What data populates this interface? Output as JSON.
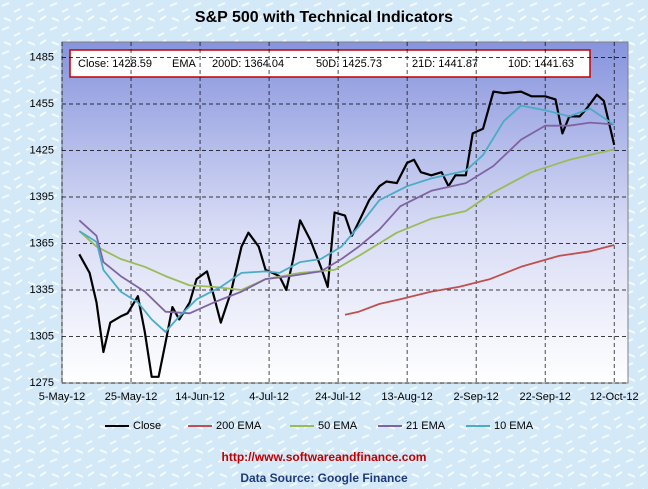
{
  "chart_data": {
    "type": "line",
    "title": "S&P 500 with Technical Indicators",
    "info_box": [
      "Close: 1428.59",
      "EMA",
      "200D: 1364.04",
      "50D: 1425.73",
      "21D: 1441.87",
      "10D: 1441.63"
    ],
    "footer_url": "http://www.softwareandfinance.com",
    "footer_source": "Data Source: Google Finance",
    "xlim": [
      "2012-05-05",
      "2012-10-16"
    ],
    "xticks": [
      {
        "value": "2012-05-05",
        "label": "5-May-12"
      },
      {
        "value": "2012-05-25",
        "label": "25-May-12"
      },
      {
        "value": "2012-06-14",
        "label": "14-Jun-12"
      },
      {
        "value": "2012-07-04",
        "label": "4-Jul-12"
      },
      {
        "value": "2012-07-24",
        "label": "24-Jul-12"
      },
      {
        "value": "2012-08-13",
        "label": "13-Aug-12"
      },
      {
        "value": "2012-09-02",
        "label": "2-Sep-12"
      },
      {
        "value": "2012-09-22",
        "label": "22-Sep-12"
      },
      {
        "value": "2012-10-12",
        "label": "12-Oct-12"
      }
    ],
    "ylim": [
      1275,
      1495
    ],
    "yticks": [
      1275,
      1305,
      1335,
      1365,
      1395,
      1425,
      1455,
      1485
    ],
    "grid": true,
    "legend": "bottom",
    "series": [
      {
        "name": "Close",
        "color": "#000000",
        "x": [
          "2012-05-10",
          "2012-05-13",
          "2012-05-15",
          "2012-05-17",
          "2012-05-19",
          "2012-05-22",
          "2012-05-24",
          "2012-05-27",
          "2012-05-29",
          "2012-05-31",
          "2012-06-02",
          "2012-06-04",
          "2012-06-06",
          "2012-06-08",
          "2012-06-11",
          "2012-06-13",
          "2012-06-16",
          "2012-06-18",
          "2012-06-20",
          "2012-06-23",
          "2012-06-26",
          "2012-06-28",
          "2012-07-01",
          "2012-07-03",
          "2012-07-05",
          "2012-07-07",
          "2012-07-09",
          "2012-07-11",
          "2012-07-13",
          "2012-07-16",
          "2012-07-19",
          "2012-07-21",
          "2012-07-23",
          "2012-07-26",
          "2012-07-28",
          "2012-07-30",
          "2012-08-02",
          "2012-08-05",
          "2012-08-07",
          "2012-08-10",
          "2012-08-13",
          "2012-08-15",
          "2012-08-17",
          "2012-08-20",
          "2012-08-23",
          "2012-08-25",
          "2012-08-27",
          "2012-08-30",
          "2012-09-01",
          "2012-09-04",
          "2012-09-07",
          "2012-09-10",
          "2012-09-15",
          "2012-09-18",
          "2012-09-22",
          "2012-09-25",
          "2012-09-27",
          "2012-09-29",
          "2012-10-02",
          "2012-10-04",
          "2012-10-07",
          "2012-10-09",
          "2012-10-12"
        ],
        "values": [
          1358,
          1346,
          1327,
          1295,
          1314,
          1318,
          1320,
          1331,
          1308,
          1279,
          1279,
          1301,
          1324,
          1316,
          1327,
          1342,
          1347,
          1331,
          1314,
          1334,
          1363,
          1372,
          1363,
          1348,
          1346,
          1344,
          1335,
          1355,
          1380,
          1367,
          1350,
          1337,
          1385,
          1383,
          1370,
          1379,
          1393,
          1402,
          1405,
          1404,
          1417,
          1419,
          1411,
          1409,
          1411,
          1402,
          1409,
          1409,
          1436,
          1439,
          1463,
          1462,
          1463,
          1460,
          1460,
          1458,
          1436,
          1447,
          1447,
          1452,
          1461,
          1457,
          1428.59
        ]
      },
      {
        "name": "200 EMA",
        "color": "#c0504d",
        "x": [
          "2012-07-26",
          "2012-07-30",
          "2012-08-05",
          "2012-08-11",
          "2012-08-20",
          "2012-08-28",
          "2012-09-06",
          "2012-09-15",
          "2012-09-26",
          "2012-10-05",
          "2012-10-12"
        ],
        "values": [
          1319,
          1321,
          1326,
          1329,
          1334,
          1337,
          1342,
          1350,
          1357,
          1360,
          1364.04
        ]
      },
      {
        "name": "50 EMA",
        "color": "#9bbb59",
        "x": [
          "2012-05-10",
          "2012-05-15",
          "2012-05-22",
          "2012-05-29",
          "2012-06-04",
          "2012-06-11",
          "2012-06-18",
          "2012-06-26",
          "2012-07-03",
          "2012-07-13",
          "2012-07-23",
          "2012-07-30",
          "2012-08-10",
          "2012-08-20",
          "2012-08-30",
          "2012-09-07",
          "2012-09-18",
          "2012-09-29",
          "2012-10-12"
        ],
        "values": [
          1373,
          1363,
          1355,
          1350,
          1344,
          1338,
          1337,
          1335,
          1342,
          1346,
          1348,
          1357,
          1372,
          1381,
          1386,
          1398,
          1411,
          1419,
          1425.73
        ]
      },
      {
        "name": "21 EMA",
        "color": "#8064a2",
        "x": [
          "2012-05-10",
          "2012-05-15",
          "2012-05-17",
          "2012-05-22",
          "2012-05-29",
          "2012-06-04",
          "2012-06-11",
          "2012-06-18",
          "2012-06-26",
          "2012-07-03",
          "2012-07-10",
          "2012-07-19",
          "2012-07-25",
          "2012-07-30",
          "2012-08-05",
          "2012-08-11",
          "2012-08-20",
          "2012-08-30",
          "2012-09-07",
          "2012-09-15",
          "2012-09-22",
          "2012-09-29",
          "2012-10-05",
          "2012-10-12"
        ],
        "values": [
          1380,
          1370,
          1353,
          1344,
          1334,
          1321,
          1320,
          1327,
          1334,
          1342,
          1344,
          1347,
          1355,
          1363,
          1374,
          1389,
          1399,
          1404,
          1415,
          1432,
          1441,
          1441,
          1443,
          1441.87
        ]
      },
      {
        "name": "10 EMA",
        "color": "#4bacc6",
        "x": [
          "2012-05-10",
          "2012-05-15",
          "2012-05-17",
          "2012-05-22",
          "2012-05-27",
          "2012-05-31",
          "2012-06-04",
          "2012-06-08",
          "2012-06-13",
          "2012-06-20",
          "2012-06-26",
          "2012-07-03",
          "2012-07-07",
          "2012-07-13",
          "2012-07-19",
          "2012-07-25",
          "2012-07-30",
          "2012-08-05",
          "2012-08-13",
          "2012-08-20",
          "2012-08-30",
          "2012-09-04",
          "2012-09-10",
          "2012-09-15",
          "2012-09-22",
          "2012-09-29",
          "2012-10-05",
          "2012-10-12"
        ],
        "values": [
          1373,
          1366,
          1348,
          1334,
          1327,
          1316,
          1308,
          1318,
          1329,
          1337,
          1346,
          1347,
          1346,
          1353,
          1355,
          1363,
          1376,
          1393,
          1402,
          1407,
          1412,
          1422,
          1444,
          1454,
          1451,
          1447,
          1452,
          1441.63
        ]
      }
    ]
  }
}
